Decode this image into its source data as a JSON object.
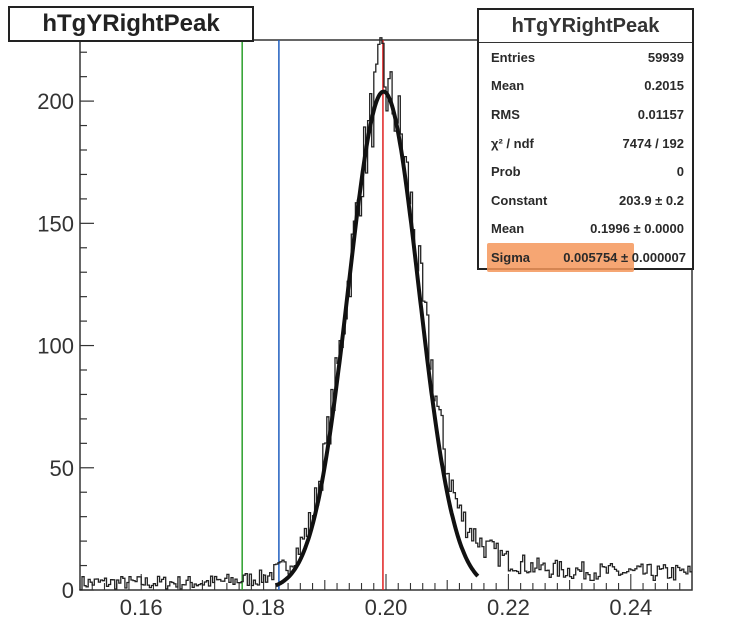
{
  "chart_data": {
    "type": "histogram",
    "title": "hTgYRightPeak",
    "xlim": [
      0.15,
      0.25
    ],
    "ylim": [
      0,
      225
    ],
    "x_ticks": [
      "0.16",
      "0.18",
      "0.20",
      "0.22",
      "0.24"
    ],
    "y_ticks": [
      "0",
      "50",
      "100",
      "150",
      "200"
    ],
    "vertical_lines": [
      {
        "x": 0.1765,
        "color": "#2ca02c"
      },
      {
        "x": 0.1825,
        "color": "#1f5fbf"
      },
      {
        "x": 0.1995,
        "color": "#e02020"
      }
    ],
    "gaussian_fit": {
      "constant": 203.9,
      "mean": 0.1996,
      "sigma": 0.005754,
      "x_range": [
        0.182,
        0.215
      ]
    },
    "histogram_profile": [
      [
        0.15,
        3
      ],
      [
        0.17,
        3
      ],
      [
        0.176,
        4
      ],
      [
        0.18,
        5
      ],
      [
        0.184,
        10
      ],
      [
        0.186,
        18
      ],
      [
        0.188,
        30
      ],
      [
        0.19,
        55
      ],
      [
        0.192,
        88
      ],
      [
        0.194,
        128
      ],
      [
        0.196,
        170
      ],
      [
        0.198,
        198
      ],
      [
        0.1995,
        215
      ],
      [
        0.2,
        205
      ],
      [
        0.202,
        193
      ],
      [
        0.204,
        160
      ],
      [
        0.206,
        118
      ],
      [
        0.208,
        82
      ],
      [
        0.21,
        50
      ],
      [
        0.212,
        32
      ],
      [
        0.214,
        24
      ],
      [
        0.216,
        18
      ],
      [
        0.22,
        12
      ],
      [
        0.225,
        9
      ],
      [
        0.23,
        8
      ],
      [
        0.24,
        7
      ],
      [
        0.25,
        7
      ]
    ]
  },
  "stats": {
    "title": "hTgYRightPeak",
    "rows": [
      {
        "label": "Entries",
        "value": "59939"
      },
      {
        "label": "Mean",
        "value": "0.2015"
      },
      {
        "label": "RMS",
        "value": "0.01157"
      },
      {
        "label": "χ² / ndf",
        "value": "7474 / 192"
      },
      {
        "label": "Prob",
        "value": "0"
      },
      {
        "label": "Constant",
        "value": "203.9 ± 0.2"
      },
      {
        "label": "Mean",
        "value": "0.1996 ± 0.0000"
      },
      {
        "label": "Sigma",
        "value": "0.005754 ± 0.000007"
      }
    ]
  }
}
